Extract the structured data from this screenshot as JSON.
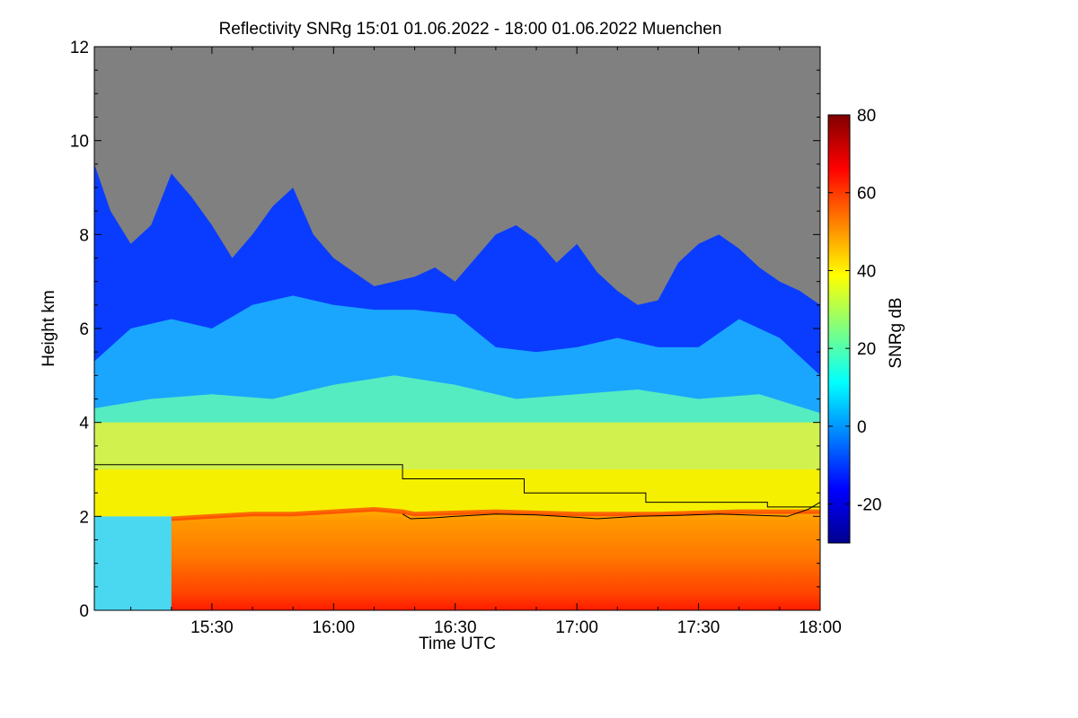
{
  "chart_data": {
    "type": "heatmap",
    "title": "Reflectivity SNRg   15:01 01.06.2022 - 18:00 01.06.2022 Muenchen",
    "xlabel": "Time UTC",
    "ylabel": "Height km",
    "xlim": [
      "15:01",
      "18:00"
    ],
    "ylim": [
      0,
      12
    ],
    "x_ticks": [
      "15:30",
      "16:00",
      "16:30",
      "17:00",
      "17:30",
      "18:00"
    ],
    "y_ticks": [
      "0",
      "2",
      "4",
      "6",
      "8",
      "10",
      "12"
    ],
    "colorbar": {
      "label": "SNRg dB",
      "range": [
        -30,
        80
      ],
      "ticks": [
        "-20",
        "0",
        "20",
        "40",
        "60",
        "80"
      ],
      "colormap": [
        "#00008f",
        "#0000ff",
        "#00ffff",
        "#ffff00",
        "#ff0000",
        "#800000"
      ]
    },
    "no_signal_color": "#808080",
    "series": [
      {
        "style": "step",
        "points": [
          [
            "15:01",
            3.1
          ],
          [
            "16:17",
            3.1
          ],
          [
            "16:17",
            2.8
          ],
          [
            "16:47",
            2.8
          ],
          [
            "16:47",
            2.5
          ],
          [
            "17:17",
            2.5
          ],
          [
            "17:17",
            2.3
          ],
          [
            "17:47",
            2.3
          ],
          [
            "17:47",
            2.2
          ],
          [
            "18:00",
            2.2
          ]
        ]
      },
      {
        "style": "line",
        "points": [
          [
            "16:17",
            2.05
          ],
          [
            "16:19",
            1.95
          ],
          [
            "16:25",
            1.97
          ],
          [
            "16:30",
            2.0
          ],
          [
            "16:40",
            2.05
          ],
          [
            "16:50",
            2.03
          ],
          [
            "17:00",
            1.98
          ],
          [
            "17:05",
            1.95
          ],
          [
            "17:15",
            2.0
          ],
          [
            "17:25",
            2.02
          ],
          [
            "17:35",
            2.05
          ],
          [
            "17:45",
            2.02
          ],
          [
            "17:52",
            2.0
          ],
          [
            "17:57",
            2.15
          ],
          [
            "18:00",
            2.3
          ]
        ]
      }
    ],
    "layers": [
      {
        "label": "echo top",
        "points": [
          [
            "15:01",
            9.5
          ],
          [
            "15:05",
            8.5
          ],
          [
            "15:10",
            7.8
          ],
          [
            "15:15",
            8.2
          ],
          [
            "15:20",
            9.3
          ],
          [
            "15:25",
            8.8
          ],
          [
            "15:30",
            8.2
          ],
          [
            "15:35",
            7.5
          ],
          [
            "15:40",
            8.0
          ],
          [
            "15:45",
            8.6
          ],
          [
            "15:50",
            9.0
          ],
          [
            "15:55",
            8.0
          ],
          [
            "16:00",
            7.5
          ],
          [
            "16:05",
            7.2
          ],
          [
            "16:10",
            6.9
          ],
          [
            "16:15",
            7.0
          ],
          [
            "16:20",
            7.1
          ],
          [
            "16:25",
            7.3
          ],
          [
            "16:30",
            7.0
          ],
          [
            "16:35",
            7.5
          ],
          [
            "16:40",
            8.0
          ],
          [
            "16:45",
            8.2
          ],
          [
            "16:50",
            7.9
          ],
          [
            "16:55",
            7.4
          ],
          [
            "17:00",
            7.8
          ],
          [
            "17:05",
            7.2
          ],
          [
            "17:10",
            6.8
          ],
          [
            "17:15",
            6.5
          ],
          [
            "17:20",
            6.6
          ],
          [
            "17:25",
            7.4
          ],
          [
            "17:30",
            7.8
          ],
          [
            "17:35",
            8.0
          ],
          [
            "17:40",
            7.7
          ],
          [
            "17:45",
            7.3
          ],
          [
            "17:50",
            7.0
          ],
          [
            "17:55",
            6.8
          ],
          [
            "18:00",
            6.5
          ]
        ]
      },
      {
        "label": "blue band base",
        "points": [
          [
            "15:01",
            5.3
          ],
          [
            "15:10",
            6.0
          ],
          [
            "15:20",
            6.2
          ],
          [
            "15:30",
            6.0
          ],
          [
            "15:40",
            6.5
          ],
          [
            "15:50",
            6.7
          ],
          [
            "16:00",
            6.5
          ],
          [
            "16:10",
            6.4
          ],
          [
            "16:20",
            6.4
          ],
          [
            "16:30",
            6.3
          ],
          [
            "16:40",
            5.6
          ],
          [
            "16:50",
            5.5
          ],
          [
            "17:00",
            5.6
          ],
          [
            "17:10",
            5.8
          ],
          [
            "17:20",
            5.6
          ],
          [
            "17:30",
            5.6
          ],
          [
            "17:40",
            6.2
          ],
          [
            "17:50",
            5.8
          ],
          [
            "18:00",
            5.0
          ]
        ]
      },
      {
        "label": "cyan band base",
        "points": [
          [
            "15:01",
            4.3
          ],
          [
            "15:15",
            4.5
          ],
          [
            "15:30",
            4.6
          ],
          [
            "15:45",
            4.5
          ],
          [
            "16:00",
            4.8
          ],
          [
            "16:15",
            5.0
          ],
          [
            "16:30",
            4.8
          ],
          [
            "16:45",
            4.5
          ],
          [
            "17:00",
            4.6
          ],
          [
            "17:15",
            4.7
          ],
          [
            "17:30",
            4.5
          ],
          [
            "17:45",
            4.6
          ],
          [
            "18:00",
            4.2
          ]
        ]
      },
      {
        "label": "melting layer",
        "points": [
          [
            "15:20",
            1.95
          ],
          [
            "15:30",
            2.0
          ],
          [
            "15:40",
            2.05
          ],
          [
            "15:50",
            2.05
          ],
          [
            "16:00",
            2.1
          ],
          [
            "16:10",
            2.15
          ],
          [
            "16:17",
            2.1
          ],
          [
            "16:20",
            2.05
          ],
          [
            "16:40",
            2.1
          ],
          [
            "17:00",
            2.05
          ],
          [
            "17:20",
            2.05
          ],
          [
            "17:40",
            2.1
          ],
          [
            "18:00",
            2.1
          ]
        ]
      },
      {
        "label": "rain onset",
        "points": [
          [
            "15:20",
            0
          ]
        ]
      }
    ]
  }
}
